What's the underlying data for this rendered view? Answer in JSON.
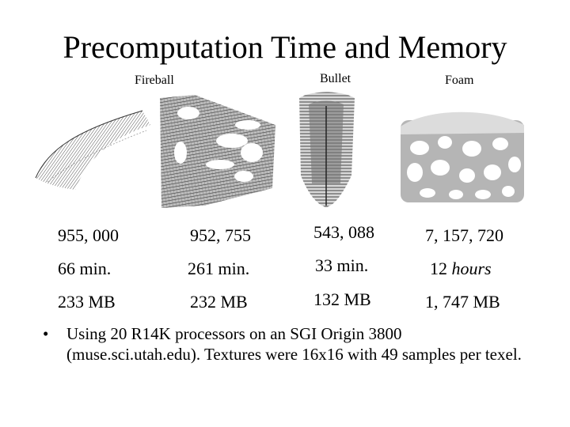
{
  "slide": {
    "title": "Precomputation Time and Memory"
  },
  "columns": [
    {
      "label": "Fireball"
    },
    {
      "label": ""
    },
    {
      "label": "Bullet"
    },
    {
      "label": "Foam"
    }
  ],
  "rows": [
    [
      "955, 000",
      "952, 755",
      "543, 088",
      "7, 157, 720"
    ],
    [
      "66 min.",
      "261 min.",
      "33 min.",
      "12"
    ],
    [
      "233 MB",
      "232 MB",
      "132 MB",
      "1, 747 MB"
    ]
  ],
  "foam_time_unit": "hours",
  "bullet": "Using 20 R14K processors on an SGI Origin 3800 (muse.sci.utah.edu).  Textures were 16x16 with 49 samples per texel."
}
